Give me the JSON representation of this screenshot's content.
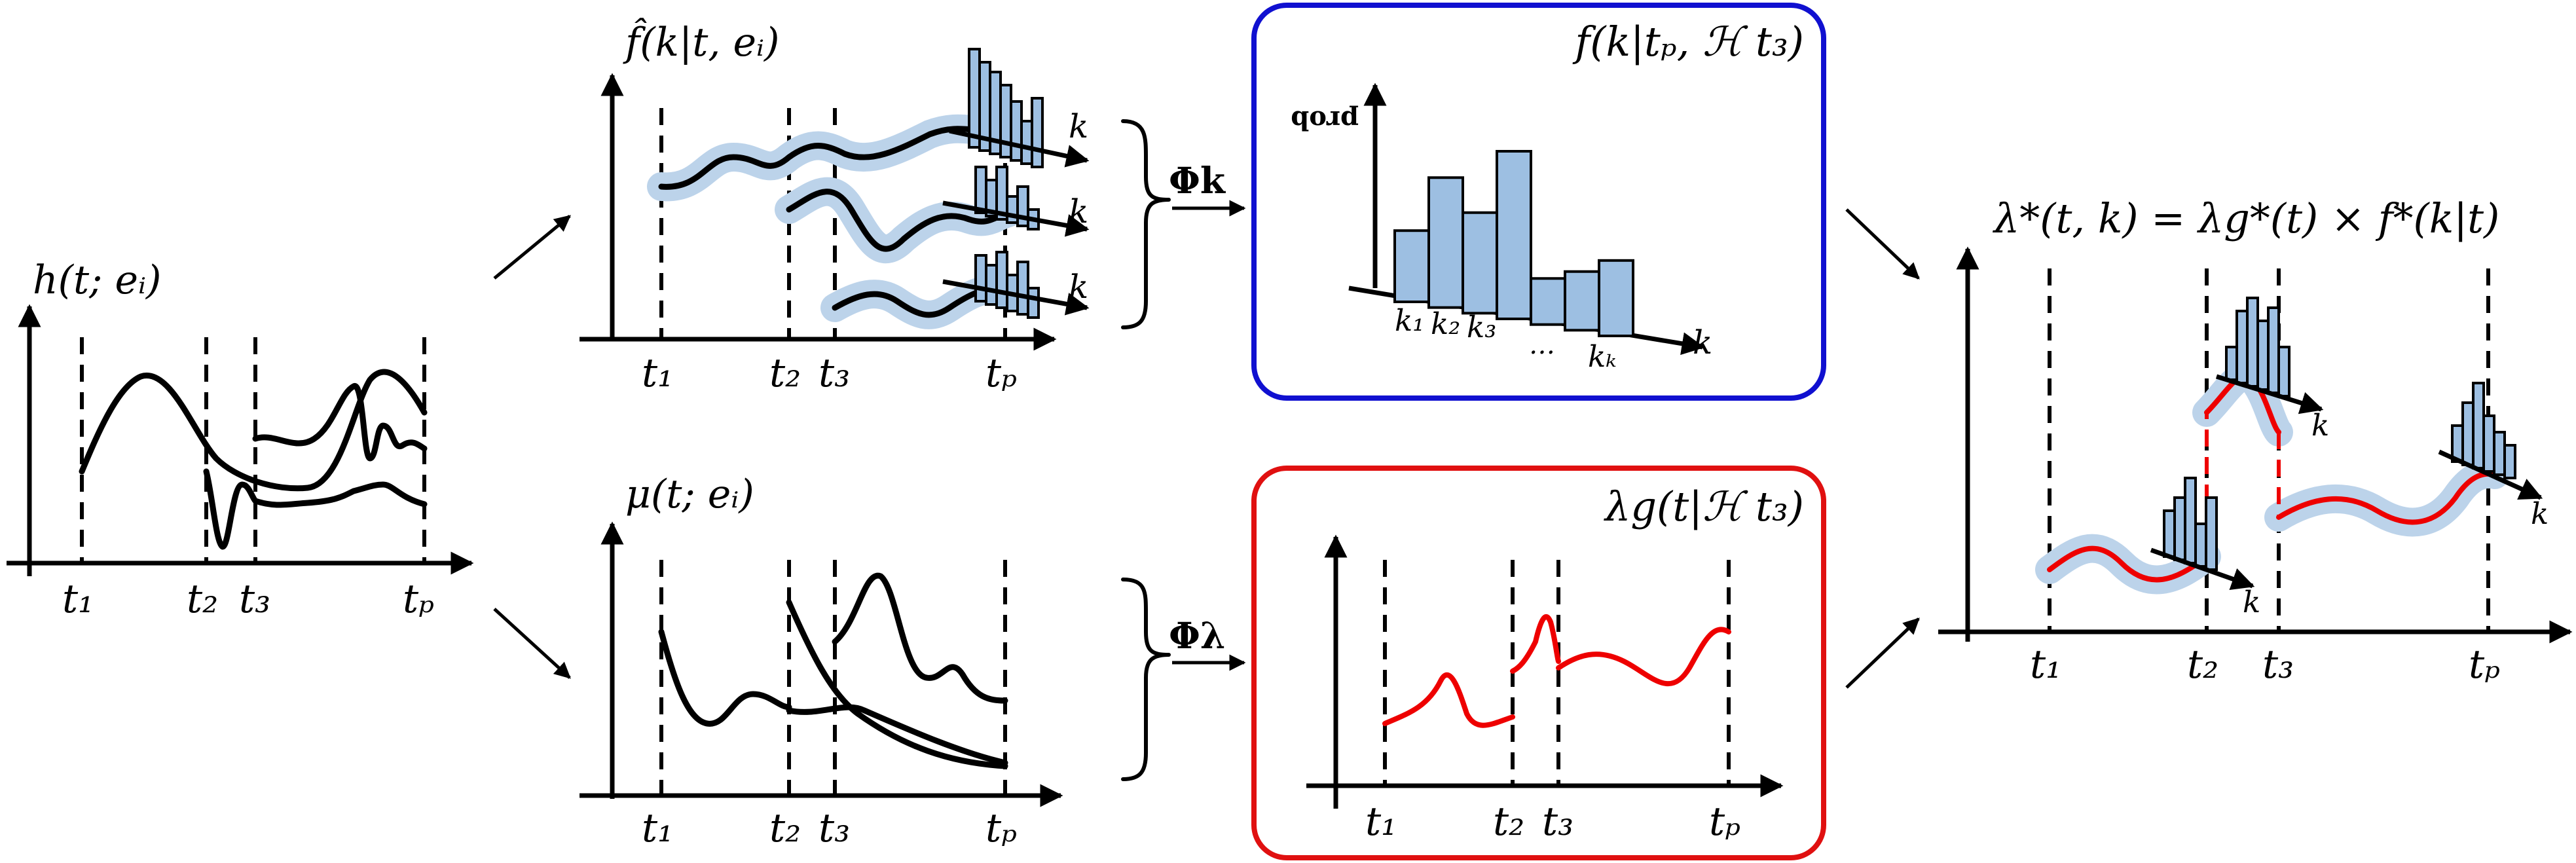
{
  "panel_h": {
    "title": "h(t; eᵢ)",
    "ticks": [
      "t₁",
      "t₂",
      "t₃",
      "tₚ"
    ]
  },
  "panel_fhat": {
    "title": "f̂(k|t, eᵢ)",
    "ticks": [
      "t₁",
      "t₂",
      "t₃",
      "tₚ"
    ],
    "k_labels": [
      "k",
      "k",
      "k"
    ]
  },
  "panel_mu": {
    "title": "μ(t; eᵢ)",
    "ticks": [
      "t₁",
      "t₂",
      "t₃",
      "tₚ"
    ]
  },
  "phi_k": "Φk",
  "phi_lambda": "Φλ",
  "box_f": {
    "title": "f(k|tₚ, ℋ t₃)",
    "y_label": "prob",
    "x_label": "k",
    "k_ticks": [
      "k₁",
      "k₂",
      "k₃",
      "…",
      "kₖ"
    ],
    "bar_values": [
      0.34,
      0.62,
      0.48,
      0.8,
      0.22,
      0.28,
      0.36
    ],
    "border_color": "#1010d0"
  },
  "box_lambda": {
    "title": "λg(t|ℋ t₃)",
    "ticks": [
      "t₁",
      "t₂",
      "t₃",
      "tₚ"
    ],
    "border_color": "#e01010"
  },
  "panel_out": {
    "title": "λ*(t, k) = λg*(t) × f*(k|t)",
    "ticks": [
      "t₁",
      "t₂",
      "t₃",
      "tₚ"
    ],
    "k_labels": [
      "k",
      "k",
      "k"
    ]
  }
}
